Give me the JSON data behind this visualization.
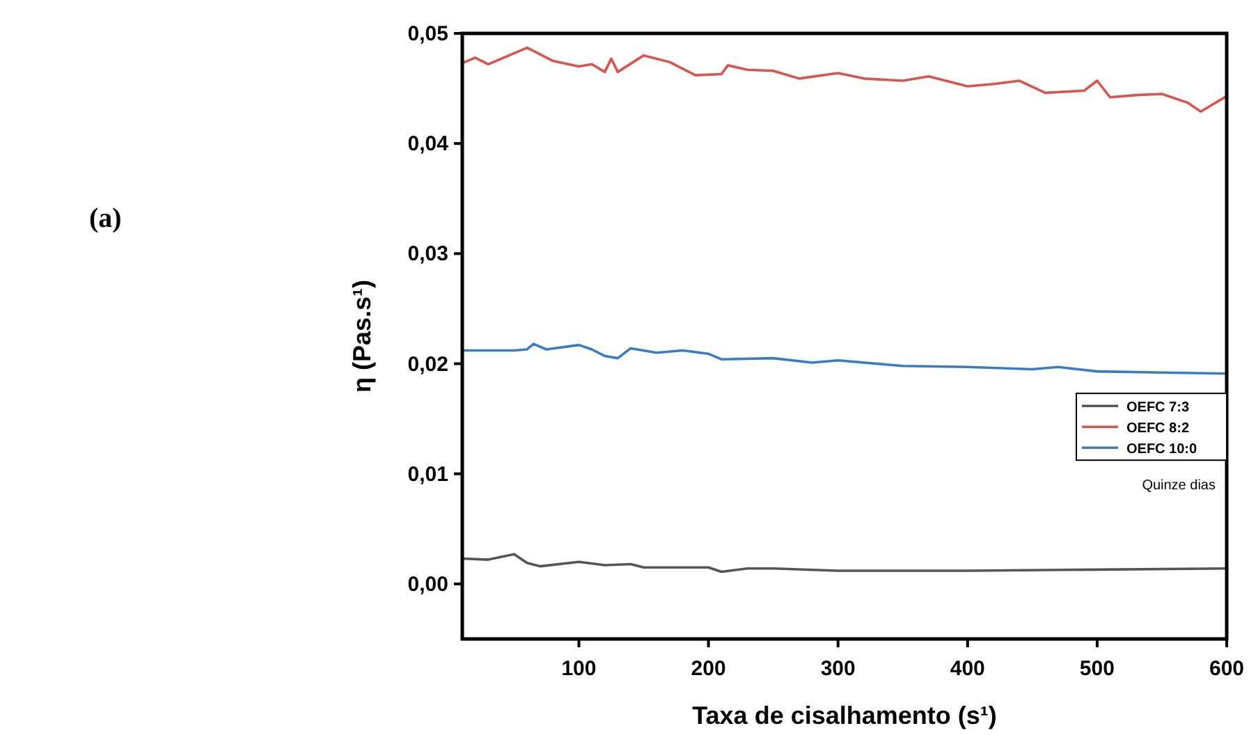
{
  "chart_data": {
    "type": "line",
    "xlabel": "Taxa de cisalhamento (s¹)",
    "ylabel": "η (Pas.s¹)",
    "annotations": [
      "(a)",
      "Quinze dias"
    ],
    "xlim": [
      10,
      600
    ],
    "xticks": [
      100,
      200,
      300,
      400,
      500,
      600
    ],
    "ylim": [
      -0.005,
      0.05
    ],
    "yticks": [
      {
        "value": 0,
        "label": "0,00"
      },
      {
        "value": 0.01,
        "label": "0,01"
      },
      {
        "value": 0.02,
        "label": "0,02"
      },
      {
        "value": 0.03,
        "label": "0,03"
      },
      {
        "value": 0.04,
        "label": "0,04"
      },
      {
        "value": 0.05,
        "label": "0,05"
      }
    ],
    "grid": false,
    "legend": "right",
    "marker": "none",
    "line_style": "solid",
    "series": [
      {
        "name": "OEFC 7:3",
        "color": "#555555",
        "x": [
          10,
          30,
          50,
          60,
          70,
          100,
          120,
          140,
          150,
          200,
          210,
          230,
          250,
          300,
          400,
          500,
          600
        ],
        "values": [
          0.0023,
          0.0022,
          0.0027,
          0.0019,
          0.0016,
          0.002,
          0.0017,
          0.0018,
          0.0015,
          0.0015,
          0.0011,
          0.0014,
          0.0014,
          0.0012,
          0.0012,
          0.0013,
          0.0014
        ]
      },
      {
        "name": "OEFC 8:2",
        "color": "#d9534f",
        "x": [
          10,
          20,
          30,
          60,
          80,
          100,
          110,
          120,
          125,
          130,
          150,
          170,
          190,
          210,
          215,
          230,
          250,
          270,
          300,
          320,
          350,
          370,
          400,
          420,
          440,
          460,
          490,
          500,
          510,
          530,
          550,
          570,
          580,
          600
        ],
        "values": [
          0.0473,
          0.0478,
          0.0472,
          0.0487,
          0.0475,
          0.047,
          0.0472,
          0.0465,
          0.0477,
          0.0465,
          0.048,
          0.0474,
          0.0462,
          0.0463,
          0.0471,
          0.0467,
          0.0466,
          0.0459,
          0.0464,
          0.0459,
          0.0457,
          0.0461,
          0.0452,
          0.0454,
          0.0457,
          0.0446,
          0.0448,
          0.0457,
          0.0442,
          0.0444,
          0.0445,
          0.0437,
          0.0429,
          0.0443
        ]
      },
      {
        "name": "OEFC 10:0",
        "color": "#3a7cc4",
        "x": [
          10,
          50,
          60,
          65,
          75,
          100,
          110,
          120,
          130,
          140,
          160,
          180,
          200,
          210,
          250,
          280,
          300,
          350,
          400,
          450,
          470,
          500,
          550,
          600
        ],
        "values": [
          0.0212,
          0.0212,
          0.0213,
          0.0218,
          0.0213,
          0.0217,
          0.0213,
          0.0207,
          0.0205,
          0.0214,
          0.021,
          0.0212,
          0.0209,
          0.0204,
          0.0205,
          0.0201,
          0.0203,
          0.0198,
          0.0197,
          0.0195,
          0.0197,
          0.0193,
          0.0192,
          0.0191
        ]
      }
    ]
  }
}
